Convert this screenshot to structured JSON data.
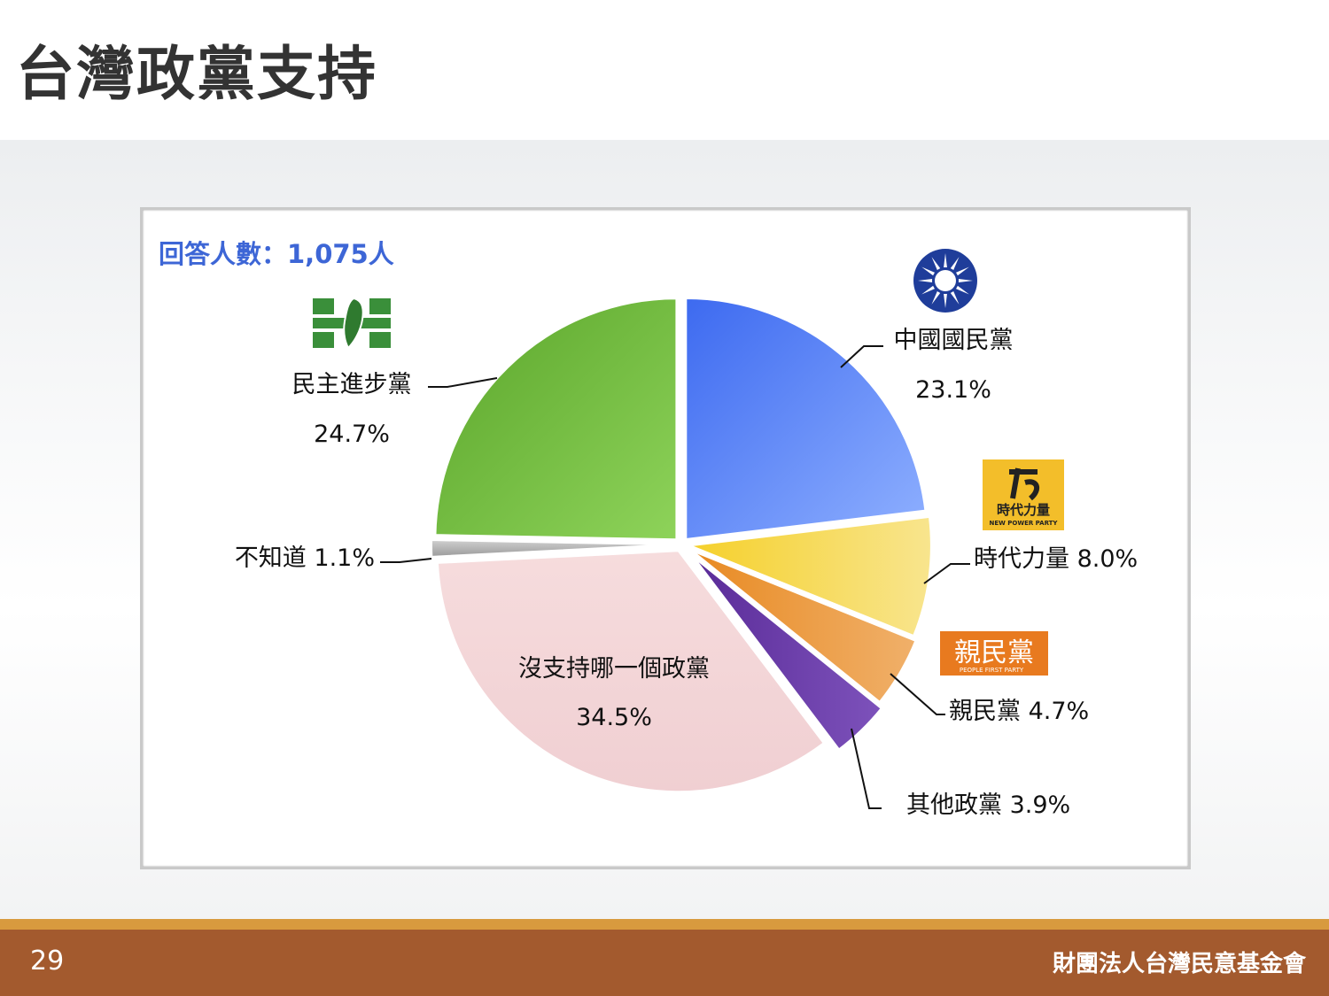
{
  "slide": {
    "title": "台灣政黨支持",
    "page_number": "29",
    "organization": "財團法人台灣民意基金會"
  },
  "chart_data": {
    "type": "pie",
    "respondents_label": "回答人數：1,075人",
    "slices": [
      {
        "name": "中國國民黨",
        "value": 23.1,
        "value_label": "23.1%",
        "color": "#5b86f0"
      },
      {
        "name": "時代力量",
        "value": 8.0,
        "value_label": "8.0%",
        "color": "#f3d24e"
      },
      {
        "name": "親民黨",
        "value": 4.7,
        "value_label": "4.7%",
        "color": "#ea9a3a"
      },
      {
        "name": "其他政黨",
        "value": 3.9,
        "value_label": "3.9%",
        "color": "#6a3aa6"
      },
      {
        "name": "沒支持哪一個政黨",
        "value": 34.5,
        "value_label": "34.5%",
        "color": "#f4d7d9"
      },
      {
        "name": "不知道",
        "value": 1.1,
        "value_label": "1.1%",
        "color": "#b5b5b5"
      },
      {
        "name": "民主進步黨",
        "value": 24.7,
        "value_label": "24.7%",
        "color": "#6cb83a"
      }
    ],
    "labels": {
      "kmt_name": "中國國民黨",
      "kmt_value": "23.1%",
      "npp": "時代力量 8.0%",
      "pfp": "親民黨 4.7%",
      "other": "其他政黨 3.9%",
      "none_name": "沒支持哪一個政黨",
      "none_value": "34.5%",
      "dk": "不知道 1.1%",
      "dpp_name": "民主進步黨",
      "dpp_value": "24.7%"
    },
    "logos": {
      "npp_text": "時代力量",
      "npp_sub": "NEW POWER PARTY",
      "pfp_text": "親民黨",
      "pfp_sub": "PEOPLE FIRST PARTY"
    },
    "legend": "none"
  }
}
